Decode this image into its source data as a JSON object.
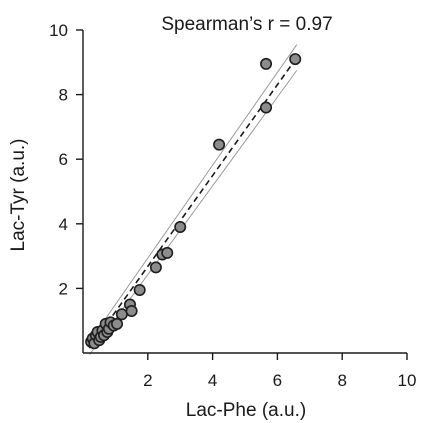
{
  "chart_data": {
    "type": "scatter",
    "title": "Spearman’s r = 0.97",
    "xlabel": "Lac-Phe (a.u.)",
    "ylabel": "Lac-Tyr (a.u.)",
    "xlim": [
      0,
      10
    ],
    "ylim": [
      0,
      10
    ],
    "x_ticks": [
      2,
      4,
      6,
      8,
      10
    ],
    "y_ticks": [
      2,
      4,
      6,
      8,
      10
    ],
    "grid": false,
    "legend": "none",
    "colors": {
      "marker_fill": "#8c8c8c",
      "marker_edge": "#1e1e1e",
      "fit": "#1a1a1a",
      "ci": "#9a9a9a"
    },
    "points": [
      {
        "x": 0.25,
        "y": 0.35
      },
      {
        "x": 0.3,
        "y": 0.45
      },
      {
        "x": 0.35,
        "y": 0.3
      },
      {
        "x": 0.4,
        "y": 0.55
      },
      {
        "x": 0.45,
        "y": 0.65
      },
      {
        "x": 0.5,
        "y": 0.4
      },
      {
        "x": 0.55,
        "y": 0.5
      },
      {
        "x": 0.6,
        "y": 0.7
      },
      {
        "x": 0.65,
        "y": 0.55
      },
      {
        "x": 0.7,
        "y": 0.9
      },
      {
        "x": 0.75,
        "y": 0.65
      },
      {
        "x": 0.8,
        "y": 0.75
      },
      {
        "x": 0.85,
        "y": 0.95
      },
      {
        "x": 0.95,
        "y": 0.85
      },
      {
        "x": 1.05,
        "y": 0.9
      },
      {
        "x": 1.2,
        "y": 1.2
      },
      {
        "x": 1.45,
        "y": 1.5
      },
      {
        "x": 1.5,
        "y": 1.3
      },
      {
        "x": 1.75,
        "y": 1.95
      },
      {
        "x": 2.25,
        "y": 2.65
      },
      {
        "x": 2.45,
        "y": 3.05
      },
      {
        "x": 2.6,
        "y": 3.1
      },
      {
        "x": 3.0,
        "y": 3.9
      },
      {
        "x": 4.2,
        "y": 6.45
      },
      {
        "x": 5.65,
        "y": 7.6
      },
      {
        "x": 5.65,
        "y": 8.95
      },
      {
        "x": 6.55,
        "y": 9.1
      }
    ],
    "fit_line": {
      "x": [
        0.2,
        6.6
      ],
      "y": [
        0.15,
        9.15
      ]
    },
    "ci_upper": {
      "x": [
        0.2,
        6.6
      ],
      "y": [
        0.35,
        9.55
      ]
    },
    "ci_lower": {
      "x": [
        0.2,
        6.6
      ],
      "y": [
        -0.05,
        8.75
      ]
    }
  }
}
